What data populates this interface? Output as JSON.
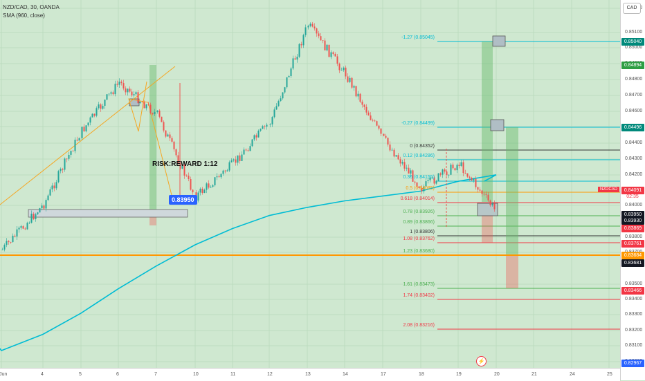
{
  "legend": {
    "symbol_line": "NZD/CAD, 30, OANDA",
    "indicator_line": "SMA (960, close)"
  },
  "currency_button": "CAD",
  "annotation": {
    "risk_reward": "RISK:REWARD 1:12",
    "callout_price": "0.83950"
  },
  "symbol_tag": {
    "name": "NZDCAD",
    "countdown": "02:35"
  },
  "alert_icon": "lightning-icon",
  "fib_levels": [
    {
      "label": "-1.27 (0.85045)",
      "color": "#00bcd4"
    },
    {
      "label": "-0.27 (0.84499)",
      "color": "#00bcd4"
    },
    {
      "label": "0 (0.84352)",
      "color": "#333333"
    },
    {
      "label": "0.12 (0.84286)",
      "color": "#00bcd4"
    },
    {
      "label": "0.36 (0.84155)",
      "color": "#00bcd4"
    },
    {
      "label": "0.5 (0.84085)",
      "color": "#ff9800"
    },
    {
      "label": "0.618 (0.84014)",
      "color": "#f23645"
    },
    {
      "label": "0.78 (0.83926)",
      "color": "#4caf50"
    },
    {
      "label": "0.89 (0.83866)",
      "color": "#4caf50"
    },
    {
      "label": "1 (0.83806)",
      "color": "#333333"
    },
    {
      "label": "1.08 (0.83762)",
      "color": "#f23645"
    },
    {
      "label": "1.23 (0.83680)",
      "color": "#4caf50"
    },
    {
      "label": "1.61 (0.83473)",
      "color": "#4caf50"
    },
    {
      "label": "1.74 (0.83402)",
      "color": "#f23645"
    },
    {
      "label": "2.08 (0.83216)",
      "color": "#f23645"
    }
  ],
  "price_axis": {
    "ticks": [
      "0.85200",
      "0.85100",
      "0.85000",
      "0.84900",
      "0.84800",
      "0.84700",
      "0.84600",
      "0.84500",
      "0.84400",
      "0.84300",
      "0.84200",
      "0.84000",
      "0.83800",
      "0.83700",
      "0.83500",
      "0.83400",
      "0.83300",
      "0.83200",
      "0.83100",
      "0.83000"
    ],
    "badges": [
      {
        "text": "0.85040",
        "color": "#00897b"
      },
      {
        "text": "0.84894",
        "color": "#2e9e44"
      },
      {
        "text": "0.84496",
        "color": "#00897b"
      },
      {
        "text": "0.84091",
        "color": "#f23645"
      },
      {
        "text": "0.83950",
        "color": "#131722"
      },
      {
        "text": "0.83930",
        "color": "#131722"
      },
      {
        "text": "0.83869",
        "color": "#f23645"
      },
      {
        "text": "0.83761",
        "color": "#f23645"
      },
      {
        "text": "0.83684",
        "color": "#ff9800"
      },
      {
        "text": "0.83681",
        "color": "#131722"
      },
      {
        "text": "0.83466",
        "color": "#f23645"
      },
      {
        "text": "0.82967",
        "color": "#2962ff"
      }
    ]
  },
  "time_axis": {
    "ticks": [
      "Jun",
      "4",
      "5",
      "6",
      "7",
      "10",
      "11",
      "12",
      "13",
      "14",
      "17",
      "18",
      "19",
      "20",
      "21",
      "24",
      "25"
    ]
  },
  "chart_data": {
    "type": "line",
    "title": "NZD/CAD, 30, OANDA",
    "xlabel": "",
    "ylabel": "",
    "ylim": [
      0.8296,
      0.8522
    ],
    "x": [
      "Jun",
      "4",
      "5",
      "6",
      "7",
      "10",
      "11",
      "12",
      "13",
      "14",
      "17",
      "18",
      "19",
      "20"
    ],
    "series": [
      {
        "name": "NZD/CAD",
        "values": [
          0.8372,
          0.84,
          0.8445,
          0.8475,
          0.8455,
          0.8405,
          0.8425,
          0.845,
          0.851,
          0.848,
          0.844,
          0.841,
          0.8425,
          0.8395
        ]
      },
      {
        "name": "SMA (960, close)",
        "values": [
          0.831,
          0.832,
          0.8333,
          0.8348,
          0.8362,
          0.8375,
          0.8385,
          0.8393,
          0.8398,
          0.8402,
          0.8405,
          0.8408,
          0.8414,
          0.8418
        ]
      }
    ]
  },
  "colors": {
    "background": "#cfe8d0",
    "sma": "#00bcd4",
    "candle_up": "#26a69a",
    "candle_down": "#ef5350",
    "support": "#ff9800"
  }
}
